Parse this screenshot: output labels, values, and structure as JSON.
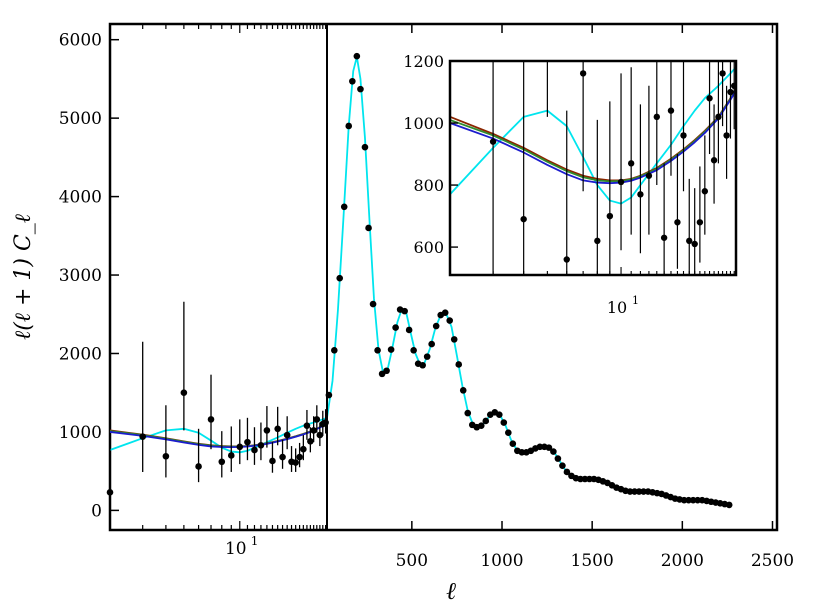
{
  "chart_data": {
    "type": "scatter",
    "xlabel": "ℓ",
    "ylabel": "ℓ(ℓ + 1) C_ℓ",
    "ylim": [
      -250,
      6200
    ],
    "y_ticks": [
      0,
      1000,
      2000,
      3000,
      4000,
      5000,
      6000
    ],
    "x_axis": {
      "low_ell_scale": "log",
      "low_ell_range": [
        2,
        29.5
      ],
      "low_ell_ticks": [
        {
          "value": 10,
          "label": "10",
          "exponent": "1"
        }
      ],
      "high_ell_scale": "linear",
      "high_ell_range": [
        29.5,
        2525
      ],
      "high_ell_ticks": [
        500,
        1000,
        1500,
        2000,
        2500
      ]
    },
    "divider_ell": 29.5,
    "colors": {
      "data": "#000000",
      "cyan": "#00e5ee",
      "dark_red": "#8b2500",
      "green": "#2e8b2e",
      "blue": "#1c1ccd"
    },
    "low_ell_points": [
      {
        "x": 2,
        "y": 230,
        "lo": 90,
        "hi": 790
      },
      {
        "x": 3,
        "y": 940,
        "lo": 490,
        "hi": 2150
      },
      {
        "x": 4,
        "y": 690,
        "lo": 420,
        "hi": 1340
      },
      {
        "x": 5,
        "y": 1500,
        "lo": 1020,
        "hi": 2660
      },
      {
        "x": 6,
        "y": 560,
        "lo": 360,
        "hi": 1040
      },
      {
        "x": 7,
        "y": 1160,
        "lo": 780,
        "hi": 1730
      },
      {
        "x": 8,
        "y": 620,
        "lo": 420,
        "hi": 1010
      },
      {
        "x": 9,
        "y": 700,
        "lo": 490,
        "hi": 1070
      },
      {
        "x": 10,
        "y": 810,
        "lo": 590,
        "hi": 1160
      },
      {
        "x": 11,
        "y": 870,
        "lo": 640,
        "hi": 1180
      },
      {
        "x": 12,
        "y": 770,
        "lo": 580,
        "hi": 1060
      },
      {
        "x": 13,
        "y": 830,
        "lo": 640,
        "hi": 1120
      },
      {
        "x": 14,
        "y": 1020,
        "lo": 800,
        "hi": 1330
      },
      {
        "x": 15,
        "y": 630,
        "lo": 480,
        "hi": 870
      },
      {
        "x": 16,
        "y": 1040,
        "lo": 830,
        "hi": 1320
      },
      {
        "x": 17,
        "y": 680,
        "lo": 530,
        "hi": 900
      },
      {
        "x": 18,
        "y": 960,
        "lo": 780,
        "hi": 1200
      },
      {
        "x": 19,
        "y": 620,
        "lo": 490,
        "hi": 820
      },
      {
        "x": 20,
        "y": 610,
        "lo": 490,
        "hi": 790
      },
      {
        "x": 21,
        "y": 680,
        "lo": 550,
        "hi": 860
      },
      {
        "x": 22,
        "y": 780,
        "lo": 640,
        "hi": 960
      },
      {
        "x": 23,
        "y": 1080,
        "lo": 900,
        "hi": 1280
      },
      {
        "x": 24,
        "y": 880,
        "lo": 740,
        "hi": 1060
      },
      {
        "x": 25,
        "y": 1020,
        "lo": 870,
        "hi": 1200
      },
      {
        "x": 26,
        "y": 1160,
        "lo": 990,
        "hi": 1340
      },
      {
        "x": 27,
        "y": 960,
        "lo": 820,
        "hi": 1120
      },
      {
        "x": 28,
        "y": 1100,
        "lo": 950,
        "hi": 1270
      },
      {
        "x": 29,
        "y": 1120,
        "lo": 980,
        "hi": 1290
      }
    ],
    "high_ell_points": [
      [
        40,
        1470
      ],
      [
        70,
        2040
      ],
      [
        100,
        2960
      ],
      [
        125,
        3870
      ],
      [
        150,
        4900
      ],
      [
        170,
        5470
      ],
      [
        195,
        5790
      ],
      [
        215,
        5370
      ],
      [
        240,
        4630
      ],
      [
        260,
        3600
      ],
      [
        285,
        2630
      ],
      [
        310,
        2040
      ],
      [
        335,
        1740
      ],
      [
        360,
        1780
      ],
      [
        385,
        2050
      ],
      [
        410,
        2330
      ],
      [
        435,
        2560
      ],
      [
        460,
        2540
      ],
      [
        485,
        2300
      ],
      [
        510,
        2040
      ],
      [
        535,
        1870
      ],
      [
        560,
        1850
      ],
      [
        585,
        1960
      ],
      [
        610,
        2120
      ],
      [
        635,
        2350
      ],
      [
        660,
        2490
      ],
      [
        685,
        2520
      ],
      [
        710,
        2420
      ],
      [
        735,
        2180
      ],
      [
        760,
        1860
      ],
      [
        785,
        1530
      ],
      [
        810,
        1240
      ],
      [
        835,
        1090
      ],
      [
        860,
        1060
      ],
      [
        885,
        1080
      ],
      [
        910,
        1140
      ],
      [
        935,
        1220
      ],
      [
        960,
        1250
      ],
      [
        985,
        1220
      ],
      [
        1010,
        1120
      ],
      [
        1035,
        990
      ],
      [
        1060,
        850
      ],
      [
        1085,
        760
      ],
      [
        1110,
        740
      ],
      [
        1135,
        740
      ],
      [
        1160,
        760
      ],
      [
        1185,
        790
      ],
      [
        1210,
        810
      ],
      [
        1235,
        810
      ],
      [
        1260,
        800
      ],
      [
        1285,
        750
      ],
      [
        1310,
        660
      ],
      [
        1335,
        570
      ],
      [
        1360,
        490
      ],
      [
        1385,
        440
      ],
      [
        1410,
        410
      ],
      [
        1435,
        400
      ],
      [
        1460,
        400
      ],
      [
        1485,
        400
      ],
      [
        1510,
        400
      ],
      [
        1535,
        390
      ],
      [
        1560,
        370
      ],
      [
        1585,
        350
      ],
      [
        1610,
        320
      ],
      [
        1635,
        290
      ],
      [
        1660,
        270
      ],
      [
        1685,
        250
      ],
      [
        1710,
        240
      ],
      [
        1735,
        240
      ],
      [
        1760,
        240
      ],
      [
        1785,
        240
      ],
      [
        1810,
        240
      ],
      [
        1835,
        230
      ],
      [
        1860,
        220
      ],
      [
        1885,
        210
      ],
      [
        1910,
        190
      ],
      [
        1935,
        170
      ],
      [
        1960,
        150
      ],
      [
        1985,
        140
      ],
      [
        2010,
        130
      ],
      [
        2035,
        130
      ],
      [
        2060,
        130
      ],
      [
        2085,
        130
      ],
      [
        2110,
        130
      ],
      [
        2135,
        120
      ],
      [
        2160,
        110
      ],
      [
        2185,
        100
      ],
      [
        2210,
        90
      ],
      [
        2235,
        80
      ],
      [
        2260,
        70
      ]
    ],
    "series": [
      {
        "color": "#00e5ee",
        "low_ell": [
          [
            2,
            770
          ],
          [
            3,
            920
          ],
          [
            4,
            1020
          ],
          [
            5,
            1040
          ],
          [
            6,
            990
          ],
          [
            7,
            890
          ],
          [
            8,
            800
          ],
          [
            9,
            750
          ],
          [
            10,
            740
          ],
          [
            11,
            760
          ],
          [
            12,
            800
          ],
          [
            14,
            870
          ],
          [
            16,
            930
          ],
          [
            18,
            990
          ],
          [
            20,
            1040
          ],
          [
            22,
            1080
          ],
          [
            25,
            1120
          ],
          [
            28,
            1160
          ],
          [
            29.5,
            1180
          ]
        ]
      },
      {
        "color": "#8b2500",
        "low_ell": [
          [
            2,
            1020
          ],
          [
            3,
            965
          ],
          [
            4,
            920
          ],
          [
            5,
            880
          ],
          [
            6,
            850
          ],
          [
            7,
            830
          ],
          [
            8,
            820
          ],
          [
            9,
            815
          ],
          [
            10,
            815
          ],
          [
            11,
            820
          ],
          [
            12,
            830
          ],
          [
            14,
            855
          ],
          [
            16,
            885
          ],
          [
            18,
            915
          ],
          [
            20,
            945
          ],
          [
            22,
            975
          ],
          [
            25,
            1020
          ],
          [
            28,
            1080
          ],
          [
            29.5,
            1110
          ]
        ]
      },
      {
        "color": "#2e8b2e",
        "low_ell": [
          [
            2,
            1010
          ],
          [
            3,
            960
          ],
          [
            4,
            915
          ],
          [
            5,
            875
          ],
          [
            6,
            845
          ],
          [
            7,
            825
          ],
          [
            8,
            815
          ],
          [
            9,
            812
          ],
          [
            10,
            813
          ],
          [
            11,
            818
          ],
          [
            12,
            828
          ],
          [
            14,
            852
          ],
          [
            16,
            882
          ],
          [
            18,
            912
          ],
          [
            20,
            942
          ],
          [
            22,
            972
          ],
          [
            25,
            1018
          ],
          [
            28,
            1078
          ],
          [
            29.5,
            1108
          ]
        ]
      },
      {
        "color": "#1c1ccd",
        "low_ell": [
          [
            2,
            1000
          ],
          [
            3,
            950
          ],
          [
            4,
            905
          ],
          [
            5,
            865
          ],
          [
            6,
            835
          ],
          [
            7,
            815
          ],
          [
            8,
            808
          ],
          [
            9,
            806
          ],
          [
            10,
            808
          ],
          [
            11,
            814
          ],
          [
            12,
            824
          ],
          [
            14,
            848
          ],
          [
            16,
            878
          ],
          [
            18,
            908
          ],
          [
            20,
            938
          ],
          [
            22,
            968
          ],
          [
            25,
            1015
          ],
          [
            28,
            1075
          ],
          [
            29.5,
            1105
          ]
        ]
      }
    ],
    "high_ell_model": [
      [
        29.5,
        1180
      ],
      [
        60,
        1650
      ],
      [
        90,
        2550
      ],
      [
        120,
        3700
      ],
      [
        150,
        4900
      ],
      [
        175,
        5600
      ],
      [
        195,
        5780
      ],
      [
        215,
        5500
      ],
      [
        240,
        4750
      ],
      [
        265,
        3700
      ],
      [
        290,
        2700
      ],
      [
        315,
        2050
      ],
      [
        340,
        1760
      ],
      [
        365,
        1790
      ],
      [
        390,
        2050
      ],
      [
        420,
        2400
      ],
      [
        445,
        2570
      ],
      [
        470,
        2510
      ],
      [
        495,
        2250
      ],
      [
        520,
        2000
      ],
      [
        545,
        1860
      ],
      [
        570,
        1880
      ],
      [
        600,
        2060
      ],
      [
        630,
        2320
      ],
      [
        660,
        2490
      ],
      [
        690,
        2510
      ],
      [
        720,
        2340
      ],
      [
        750,
        1970
      ],
      [
        780,
        1590
      ],
      [
        810,
        1270
      ],
      [
        840,
        1090
      ],
      [
        870,
        1060
      ],
      [
        900,
        1110
      ],
      [
        930,
        1200
      ],
      [
        960,
        1250
      ],
      [
        990,
        1210
      ],
      [
        1020,
        1080
      ],
      [
        1050,
        900
      ],
      [
        1080,
        780
      ],
      [
        1110,
        740
      ],
      [
        1140,
        745
      ],
      [
        1170,
        775
      ],
      [
        1200,
        805
      ],
      [
        1230,
        810
      ],
      [
        1260,
        795
      ],
      [
        1290,
        740
      ],
      [
        1320,
        630
      ],
      [
        1350,
        520
      ],
      [
        1380,
        450
      ],
      [
        1410,
        410
      ],
      [
        1440,
        400
      ],
      [
        1500,
        400
      ],
      [
        1530,
        390
      ],
      [
        1560,
        370
      ],
      [
        1600,
        330
      ],
      [
        1650,
        280
      ],
      [
        1700,
        245
      ],
      [
        1750,
        240
      ],
      [
        1800,
        240
      ],
      [
        1850,
        225
      ],
      [
        1900,
        200
      ],
      [
        1950,
        160
      ],
      [
        2000,
        135
      ],
      [
        2100,
        130
      ],
      [
        2150,
        115
      ],
      [
        2200,
        95
      ],
      [
        2260,
        70
      ]
    ],
    "inset": {
      "xscale": "log",
      "xlim": [
        2,
        29.5
      ],
      "ylim": [
        510,
        1200
      ],
      "y_ticks": [
        600,
        800,
        1000,
        1200
      ],
      "x_ticks": [
        {
          "value": 10,
          "label": "10",
          "exponent": "1"
        }
      ]
    }
  }
}
